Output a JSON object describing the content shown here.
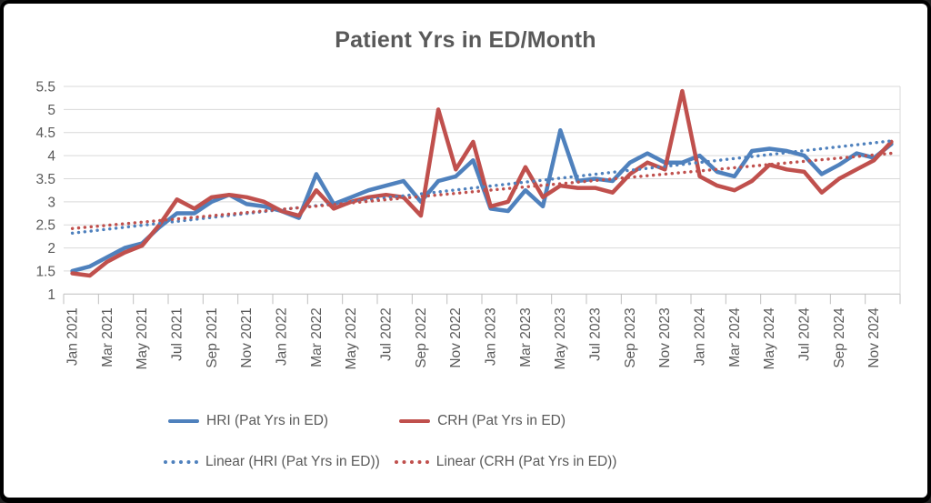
{
  "chart_data": {
    "type": "line",
    "title": "Patient Yrs in ED/Month",
    "xlabel": "",
    "ylabel": "",
    "ylim": [
      1,
      5.5
    ],
    "ytick_step": 0.5,
    "ytick_labels": [
      "1",
      "1.5",
      "2",
      "2.5",
      "3",
      "3.5",
      "4",
      "4.5",
      "5",
      "5.5"
    ],
    "grid": true,
    "legend_position": "bottom",
    "x_label_every": 2,
    "x_axis_labels": [
      "Jan 2021",
      "Mar 2021",
      "May 2021",
      "Jul 2021",
      "Sep 2021",
      "Nov 2021",
      "Jan 2022",
      "Mar 2022",
      "May 2022",
      "Jul 2022",
      "Sep 2022",
      "Nov 2022",
      "Jan 2023",
      "Mar 2023",
      "May 2023",
      "Jul 2023",
      "Sep 2023",
      "Nov 2023",
      "Jan 2024",
      "Mar 2024",
      "May 2024",
      "Jul 2024",
      "Sep 2024",
      "Nov 2024"
    ],
    "categories": [
      "Jan 2021",
      "Feb 2021",
      "Mar 2021",
      "Apr 2021",
      "May 2021",
      "Jun 2021",
      "Jul 2021",
      "Aug 2021",
      "Sep 2021",
      "Oct 2021",
      "Nov 2021",
      "Dec 2021",
      "Jan 2022",
      "Feb 2022",
      "Mar 2022",
      "Apr 2022",
      "May 2022",
      "Jun 2022",
      "Jul 2022",
      "Aug 2022",
      "Sep 2022",
      "Oct 2022",
      "Nov 2022",
      "Dec 2022",
      "Jan 2023",
      "Feb 2023",
      "Mar 2023",
      "Apr 2023",
      "May 2023",
      "Jun 2023",
      "Jul 2023",
      "Aug 2023",
      "Sep 2023",
      "Oct 2023",
      "Nov 2023",
      "Dec 2023",
      "Jan 2024",
      "Feb 2024",
      "Mar 2024",
      "Apr 2024",
      "May 2024",
      "Jun 2024",
      "Jul 2024",
      "Aug 2024",
      "Sep 2024",
      "Oct 2024",
      "Nov 2024",
      "Dec 2024"
    ],
    "series": [
      {
        "name": "HRI (Pat Yrs in ED)",
        "color": "#4F81BD",
        "style": "solid",
        "values": [
          1.5,
          1.6,
          1.8,
          2.0,
          2.1,
          2.45,
          2.75,
          2.75,
          3.0,
          3.15,
          2.95,
          2.9,
          2.8,
          2.65,
          3.6,
          2.95,
          3.1,
          3.25,
          3.35,
          3.45,
          3.0,
          3.45,
          3.55,
          3.9,
          2.85,
          2.8,
          3.25,
          2.9,
          4.55,
          3.45,
          3.5,
          3.45,
          3.85,
          4.05,
          3.85,
          3.85,
          4.0,
          3.65,
          3.55,
          4.1,
          4.15,
          4.1,
          4.0,
          3.6,
          3.8,
          4.05,
          3.95,
          4.25
        ]
      },
      {
        "name": "CRH (Pat Yrs in ED)",
        "color": "#C0504D",
        "style": "solid",
        "values": [
          1.45,
          1.4,
          1.7,
          1.9,
          2.05,
          2.5,
          3.05,
          2.85,
          3.1,
          3.15,
          3.1,
          3.0,
          2.8,
          2.7,
          3.25,
          2.85,
          3.0,
          3.1,
          3.15,
          3.1,
          2.7,
          5.0,
          3.7,
          4.3,
          2.9,
          3.0,
          3.75,
          3.1,
          3.35,
          3.3,
          3.3,
          3.2,
          3.6,
          3.85,
          3.7,
          5.4,
          3.55,
          3.35,
          3.25,
          3.45,
          3.8,
          3.7,
          3.65,
          3.2,
          3.5,
          3.7,
          3.9,
          4.3
        ]
      }
    ],
    "trendlines": [
      {
        "name": "Linear (HRI (Pat Yrs in ED))",
        "for_series": "HRI (Pat Yrs in ED)",
        "color": "#4F81BD",
        "style": "dotted",
        "start": 2.32,
        "end": 4.32
      },
      {
        "name": "Linear (CRH (Pat Yrs in ED))",
        "for_series": "CRH (Pat Yrs in ED)",
        "color": "#C0504D",
        "style": "dotted",
        "start": 2.42,
        "end": 4.05
      }
    ]
  },
  "colors": {
    "hri": "#4F81BD",
    "crh": "#C0504D",
    "grid": "#D9D9D9",
    "axis": "#BFBFBF",
    "text": "#595959",
    "background": "#FFFFFF",
    "frame": "#000000"
  }
}
